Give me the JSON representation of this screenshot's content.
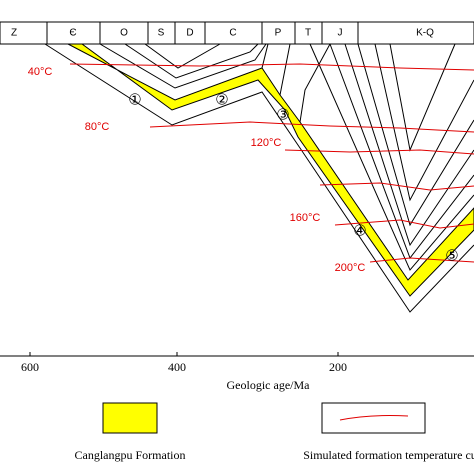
{
  "strata": [
    "Z",
    "Є",
    "O",
    "S",
    "D",
    "C",
    "P",
    "T",
    "J",
    "K-Q"
  ],
  "temperatures": [
    "40°C",
    "80°C",
    "120°C",
    "160°C",
    "200°C"
  ],
  "markers": [
    "①",
    "②",
    "③",
    "④",
    "⑤"
  ],
  "x_axis": {
    "ticks": [
      "600",
      "400",
      "200"
    ],
    "label": "Geologic age/Ma"
  },
  "legend": [
    "Canglangpu Formation",
    "Simulated formation temperature curv"
  ]
}
